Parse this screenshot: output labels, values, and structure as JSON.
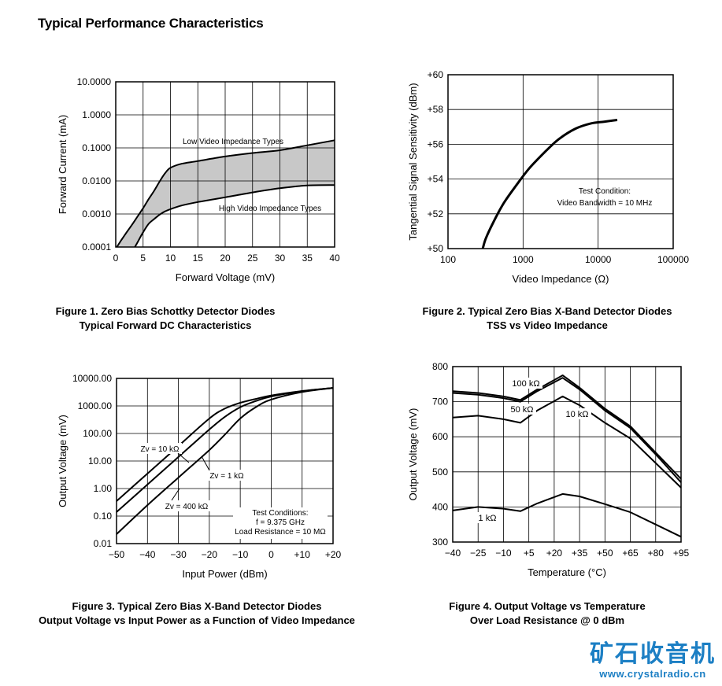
{
  "page": {
    "title": "Typical Performance Characteristics"
  },
  "watermark": {
    "name": "矿石收音机",
    "url": "www.crystalradio.cn"
  },
  "chart_data": [
    {
      "id": "fig1",
      "type": "area",
      "caption_line1": "Figure 1. Zero Bias Schottky Detector Diodes",
      "caption_line2": "Typical Forward DC Characteristics",
      "xlabel": "Forward Voltage (mV)",
      "ylabel": "Forward Current (mA)",
      "xlim": [
        0,
        40
      ],
      "ylim": [
        0.0001,
        10
      ],
      "yscale": "log",
      "xticks": [
        "0",
        "5",
        "10",
        "15",
        "20",
        "25",
        "30",
        "35",
        "40"
      ],
      "yticks": [
        "10.0000",
        "1.0000",
        "0.1000",
        "0.0100",
        "0.0010",
        "0.0001"
      ],
      "annotations": [
        "Low Video Impedance Types",
        "High Video Impedance Types"
      ],
      "series": [
        {
          "name": "Low Video Impedance Types",
          "x": [
            0.2,
            1,
            2,
            3,
            4,
            5,
            6,
            7,
            8,
            9,
            10,
            12,
            15,
            20,
            25,
            30,
            35,
            40
          ],
          "y": [
            0.0001,
            0.00016,
            0.00028,
            0.00048,
            0.00085,
            0.0015,
            0.0028,
            0.005,
            0.0095,
            0.017,
            0.025,
            0.033,
            0.04,
            0.055,
            0.07,
            0.085,
            0.12,
            0.17
          ]
        },
        {
          "name": "High Video Impedance Types",
          "x": [
            3.5,
            4,
            5,
            6,
            7,
            8,
            9,
            10,
            12,
            15,
            20,
            25,
            30,
            35,
            40
          ],
          "y": [
            0.0001,
            0.00014,
            0.00028,
            0.0005,
            0.0007,
            0.00095,
            0.0012,
            0.0014,
            0.0018,
            0.0023,
            0.0032,
            0.0045,
            0.006,
            0.0073,
            0.0075
          ]
        }
      ]
    },
    {
      "id": "fig2",
      "type": "line",
      "caption_line1": "Figure 2. Typical Zero Bias X-Band Detector Diodes",
      "caption_line2": "TSS vs Video Impedance",
      "xlabel": "Video Impedance (Ω)",
      "ylabel": "Tangential Signal Sensitivity (dBm)",
      "xscale": "log",
      "xlim": [
        100,
        100000
      ],
      "ylim": [
        50,
        60
      ],
      "xticks": [
        "100",
        "1000",
        "10000",
        "100000"
      ],
      "yticks": [
        "+60",
        "+58",
        "+56",
        "+54",
        "+52",
        "+50"
      ],
      "annotations": [
        "Test Condition:",
        "Video Bandwidth = 10 MHz"
      ],
      "series": [
        {
          "name": "TSS",
          "x": [
            290,
            320,
            400,
            550,
            800,
            1200,
            2000,
            3000,
            5000,
            8000,
            12000,
            18000
          ],
          "y": [
            50,
            50.6,
            51.5,
            52.6,
            53.6,
            54.6,
            55.6,
            56.3,
            56.9,
            57.2,
            57.3,
            57.4
          ]
        }
      ]
    },
    {
      "id": "fig3",
      "type": "line",
      "caption_line1": "Figure 3. Typical Zero Bias X-Band Detector Diodes",
      "caption_line2": "Output Voltage vs Input Power as a Function of Video Impedance",
      "xlabel": "Input Power (dBm)",
      "ylabel": "Output Voltage (mV)",
      "yscale": "log",
      "xlim": [
        -50,
        20
      ],
      "ylim": [
        0.01,
        10000
      ],
      "xticks": [
        "−50",
        "−40",
        "−30",
        "−20",
        "−10",
        "0",
        "+10",
        "+20"
      ],
      "yticks": [
        "10000.00",
        "1000.00",
        "100.00",
        "10.00",
        "1.00",
        "0.10",
        "0.01"
      ],
      "annotations": [
        "Zv = 10 kΩ",
        "Zv = 1 kΩ",
        "Zv = 400 kΩ",
        "Test Conditions:",
        "f = 9.375 GHz",
        "Load Resistance = 10 MΩ"
      ],
      "series": [
        {
          "name": "Zv = 10 kΩ",
          "x": [
            -50,
            -40,
            -30,
            -20,
            -15,
            -10,
            -5,
            0,
            10,
            20
          ],
          "y": [
            0.35,
            3.5,
            35,
            350,
            800,
            1300,
            1800,
            2400,
            3500,
            4500
          ]
        },
        {
          "name": "Zv = 1 kΩ",
          "x": [
            -50,
            -40,
            -30,
            -20,
            -15,
            -10,
            -5,
            0,
            10,
            20
          ],
          "y": [
            0.14,
            1.4,
            14,
            140,
            400,
            900,
            1500,
            2200,
            3400,
            4500
          ]
        },
        {
          "name": "Zv = 400 kΩ",
          "x": [
            -50,
            -40,
            -30,
            -20,
            -15,
            -10,
            -5,
            0,
            10,
            20
          ],
          "y": [
            0.022,
            0.25,
            2.5,
            25,
            90,
            350,
            900,
            1700,
            3200,
            4500
          ]
        }
      ]
    },
    {
      "id": "fig4",
      "type": "line",
      "caption_line1": "Figure 4. Output Voltage vs Temperature",
      "caption_line2": "Over Load Resistance @ 0 dBm",
      "xlabel": "Temperature (°C)",
      "ylabel": "Output Voltage (mV)",
      "xlim": [
        -40,
        95
      ],
      "ylim": [
        300,
        800
      ],
      "xticks": [
        "−40",
        "−25",
        "−10",
        "+5",
        "+20",
        "+35",
        "+50",
        "+65",
        "+80",
        "+95"
      ],
      "yticks": [
        "800",
        "700",
        "600",
        "500",
        "400",
        "300"
      ],
      "series": [
        {
          "name": "100 kΩ",
          "x": [
            -40,
            -25,
            -10,
            0,
            10,
            25,
            35,
            50,
            65,
            80,
            95
          ],
          "y": [
            730,
            725,
            715,
            705,
            735,
            775,
            740,
            680,
            630,
            555,
            480
          ]
        },
        {
          "name": "50 kΩ",
          "x": [
            -40,
            -25,
            -10,
            0,
            10,
            25,
            35,
            50,
            65,
            80,
            95
          ],
          "y": [
            725,
            720,
            710,
            700,
            730,
            768,
            735,
            675,
            625,
            550,
            470
          ]
        },
        {
          "name": "10 kΩ",
          "x": [
            -40,
            -25,
            -10,
            0,
            10,
            25,
            35,
            50,
            65,
            80,
            95
          ],
          "y": [
            655,
            660,
            650,
            640,
            675,
            715,
            690,
            640,
            595,
            525,
            455
          ]
        },
        {
          "name": "1 kΩ",
          "x": [
            -40,
            -25,
            -10,
            0,
            10,
            25,
            35,
            50,
            65,
            80,
            95
          ],
          "y": [
            390,
            400,
            395,
            388,
            410,
            437,
            430,
            408,
            385,
            350,
            315
          ]
        }
      ]
    }
  ]
}
